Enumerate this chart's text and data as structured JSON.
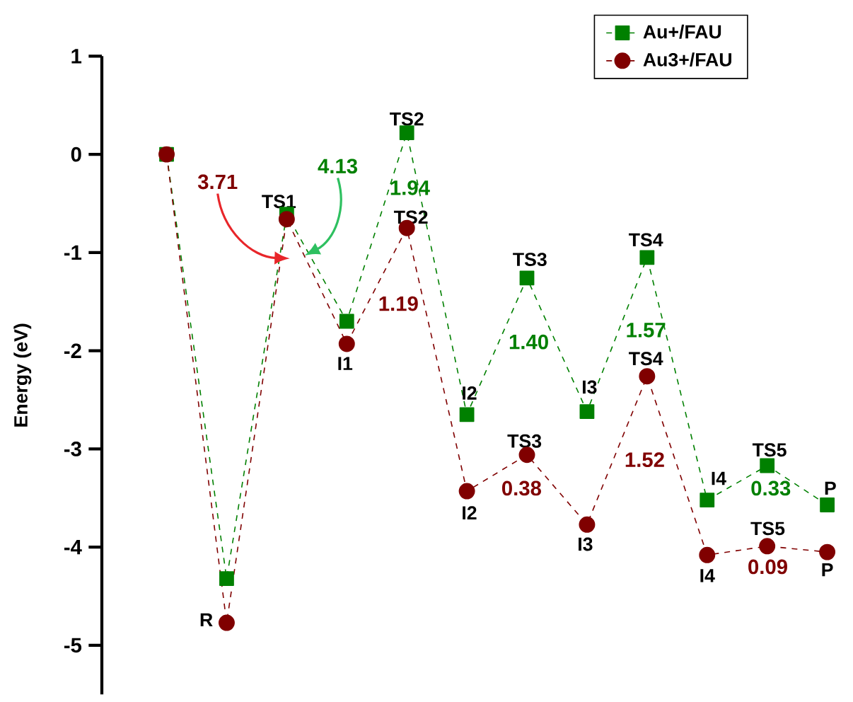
{
  "chart_data": {
    "type": "line",
    "ylabel": "Energy (eV)",
    "categories": [
      null,
      null,
      null,
      null,
      null,
      null,
      null,
      null,
      null,
      null,
      null,
      null
    ],
    "ylim": [
      -5.5,
      1
    ],
    "yticks": [
      -5,
      -4,
      -3,
      -2,
      -1,
      0,
      1
    ],
    "tick_labels": "y",
    "legend": "top right",
    "line_style": "dashed",
    "series": [
      {
        "name": "Au+/FAU",
        "color": "#008000",
        "marker": "square",
        "values": [
          0,
          -4.32,
          -0.61,
          -1.7,
          0.22,
          -2.65,
          -1.26,
          -2.62,
          -1.05,
          -3.52,
          -3.17,
          -3.57
        ]
      },
      {
        "name": "Au3+/FAU",
        "color": "#800000",
        "marker": "circle",
        "values": [
          0,
          -4.77,
          -0.66,
          -1.93,
          -0.75,
          -3.43,
          -3.06,
          -3.77,
          -2.26,
          -4.08,
          -3.99,
          -4.05
        ]
      }
    ],
    "annotations": [
      "R",
      "TS1",
      "I1",
      "TS2",
      "TS2",
      "I2",
      "I2",
      "TS3",
      "TS3",
      "I3",
      "I3",
      "TS4",
      "TS4",
      "I4",
      "I4",
      "TS5",
      "TS5",
      "P",
      "P",
      "3.71",
      "4.13",
      "1.94",
      "1.19",
      "1.40",
      "0.38",
      "1.57",
      "1.52",
      "0.33",
      "0.09"
    ]
  }
}
